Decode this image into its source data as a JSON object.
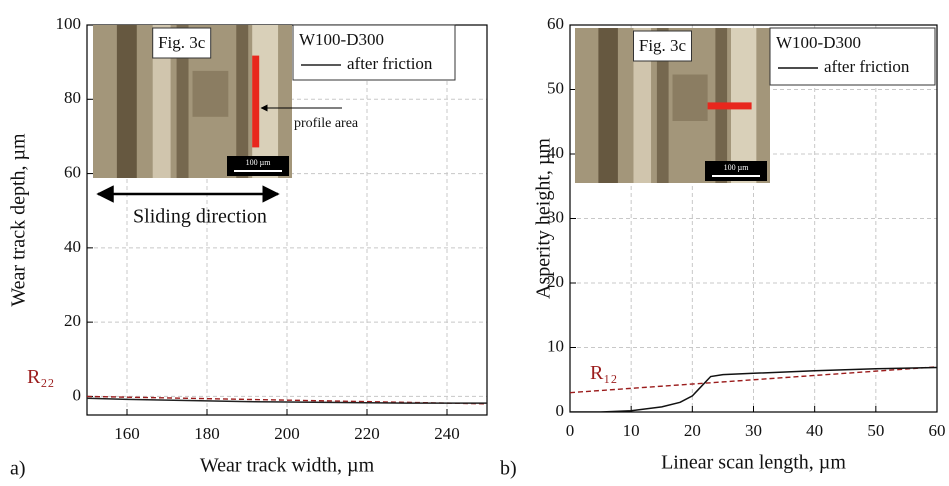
{
  "chart_data": [
    {
      "type": "line",
      "panel": "a)",
      "xlabel": "Wear track width, µm",
      "ylabel": "Wear track depth, µm",
      "xlim": [
        150,
        250
      ],
      "xticks": [
        160,
        180,
        200,
        220,
        240
      ],
      "ylim": [
        -5,
        100
      ],
      "yticks": [
        0,
        20,
        40,
        60,
        80,
        100
      ],
      "grid": true,
      "legend_title": "W100-D300",
      "series": [
        {
          "name": "after friction",
          "color": "#222222",
          "x": [
            150,
            160,
            170,
            180,
            190,
            200,
            210,
            220,
            230,
            240,
            250
          ],
          "values": [
            -0.5,
            -0.8,
            -1.0,
            -1.2,
            -1.4,
            -1.5,
            -1.6,
            -1.7,
            -1.8,
            -1.8,
            -1.8
          ]
        }
      ],
      "trend": {
        "label": "R₂₂",
        "color": "#9b1c1c",
        "x": [
          150,
          250
        ],
        "values": [
          0,
          -2
        ]
      },
      "inset": {
        "figure": "Fig. 3c",
        "scale": "100 µm",
        "pointer": "profile area",
        "arrow": "Sliding direction"
      }
    },
    {
      "type": "line",
      "panel": "b)",
      "xlabel": "Linear scan length, µm",
      "ylabel": "Asperity height, µm",
      "xlim": [
        0,
        60
      ],
      "xticks": [
        0,
        10,
        20,
        30,
        40,
        50,
        60
      ],
      "ylim": [
        0,
        60
      ],
      "yticks": [
        0,
        10,
        20,
        30,
        40,
        50,
        60
      ],
      "grid": true,
      "legend_title": "W100-D300",
      "series": [
        {
          "name": "after friction",
          "color": "#111111",
          "x": [
            0,
            5,
            10,
            15,
            18,
            20,
            21,
            22,
            23,
            25,
            30,
            40,
            50,
            60
          ],
          "values": [
            0,
            0,
            0.2,
            0.8,
            1.5,
            2.5,
            3.5,
            4.5,
            5.5,
            5.8,
            6.0,
            6.4,
            6.7,
            6.9
          ]
        }
      ],
      "trend": {
        "label": "R₁₂",
        "color": "#9b1c1c",
        "x": [
          0,
          60
        ],
        "values": [
          3,
          7
        ]
      },
      "inset": {
        "figure": "Fig. 3c",
        "scale": "100 µm"
      }
    }
  ]
}
